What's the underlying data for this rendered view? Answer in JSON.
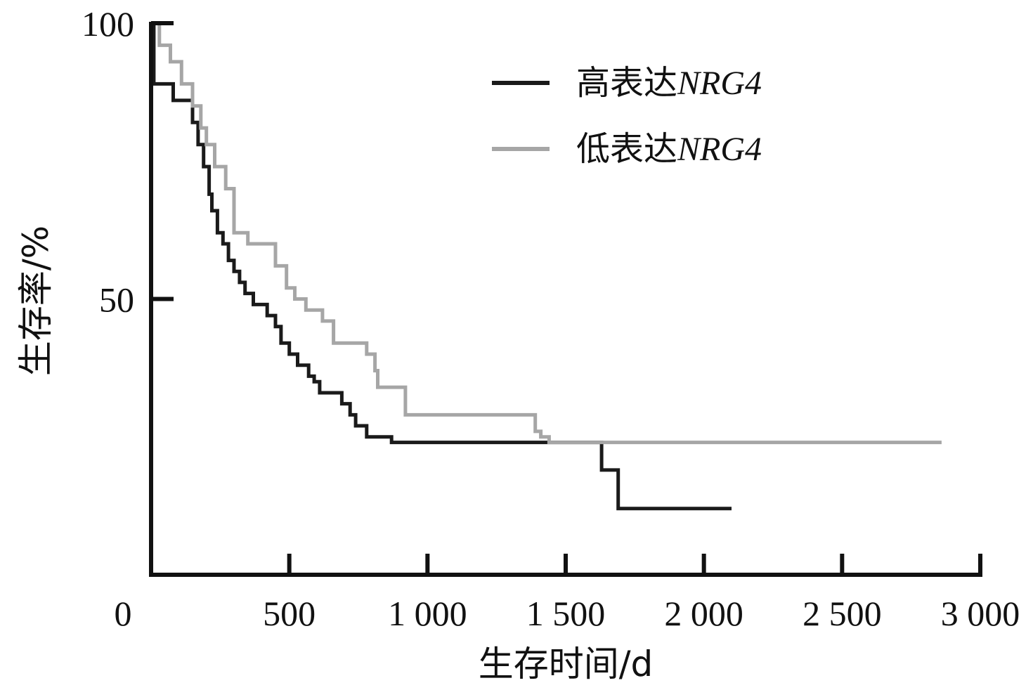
{
  "chart_data": {
    "type": "line",
    "step": true,
    "xlabel": "生存时间/d",
    "ylabel": "生存率/%",
    "xlim": [
      0,
      3000
    ],
    "ylim": [
      0,
      100
    ],
    "x_ticks": [
      0,
      500,
      1000,
      1500,
      2000,
      2500,
      3000
    ],
    "x_tick_labels": [
      "0",
      "500",
      "1 000",
      "1 500",
      "2 000",
      "2 500",
      "3 000"
    ],
    "y_ticks": [
      50,
      100
    ],
    "y_tick_labels": [
      "50",
      "100"
    ],
    "grid": false,
    "legend_position": "top-right",
    "series": [
      {
        "name": "高表达NRG4",
        "legend_prefix": "高表达",
        "legend_gene": "NRG4",
        "color": "#1a1a1a",
        "x": [
          0,
          10,
          10,
          80,
          80,
          150,
          150,
          170,
          170,
          190,
          190,
          210,
          210,
          220,
          220,
          240,
          240,
          260,
          260,
          280,
          280,
          300,
          300,
          320,
          320,
          340,
          340,
          370,
          370,
          420,
          420,
          450,
          450,
          470,
          470,
          500,
          500,
          530,
          530,
          570,
          570,
          590,
          590,
          610,
          610,
          690,
          690,
          720,
          720,
          740,
          740,
          780,
          780,
          870,
          870,
          1630,
          1630,
          1690,
          1690,
          2100
        ],
        "y": [
          100,
          100,
          89,
          89,
          86,
          86,
          82,
          82,
          78,
          78,
          74,
          74,
          69,
          69,
          66,
          66,
          62,
          62,
          60,
          60,
          57,
          57,
          55,
          55,
          53,
          53,
          51,
          51,
          49,
          49,
          47,
          47,
          45,
          45,
          42,
          42,
          40,
          40,
          38,
          38,
          36,
          36,
          35,
          35,
          33,
          33,
          31,
          31,
          29,
          29,
          27,
          27,
          25,
          25,
          24,
          24,
          19,
          19,
          12,
          12
        ]
      },
      {
        "name": "低表达NRG4",
        "legend_prefix": "低表达",
        "legend_gene": "NRG4",
        "color": "#a6a6a6",
        "x": [
          0,
          30,
          30,
          70,
          70,
          110,
          110,
          150,
          150,
          180,
          180,
          200,
          200,
          230,
          230,
          270,
          270,
          300,
          300,
          350,
          350,
          450,
          450,
          490,
          490,
          520,
          520,
          560,
          560,
          620,
          620,
          660,
          660,
          780,
          780,
          810,
          810,
          820,
          820,
          920,
          920,
          1390,
          1390,
          1410,
          1410,
          1440,
          1440,
          2860
        ],
        "y": [
          100,
          100,
          96,
          96,
          93,
          93,
          89,
          89,
          85,
          85,
          81,
          81,
          78,
          78,
          74,
          74,
          70,
          70,
          62,
          62,
          60,
          60,
          56,
          56,
          52,
          52,
          50,
          50,
          48,
          48,
          46,
          46,
          42,
          42,
          40,
          40,
          37,
          37,
          34,
          34,
          29,
          29,
          26,
          26,
          25,
          25,
          24,
          24
        ]
      }
    ]
  }
}
